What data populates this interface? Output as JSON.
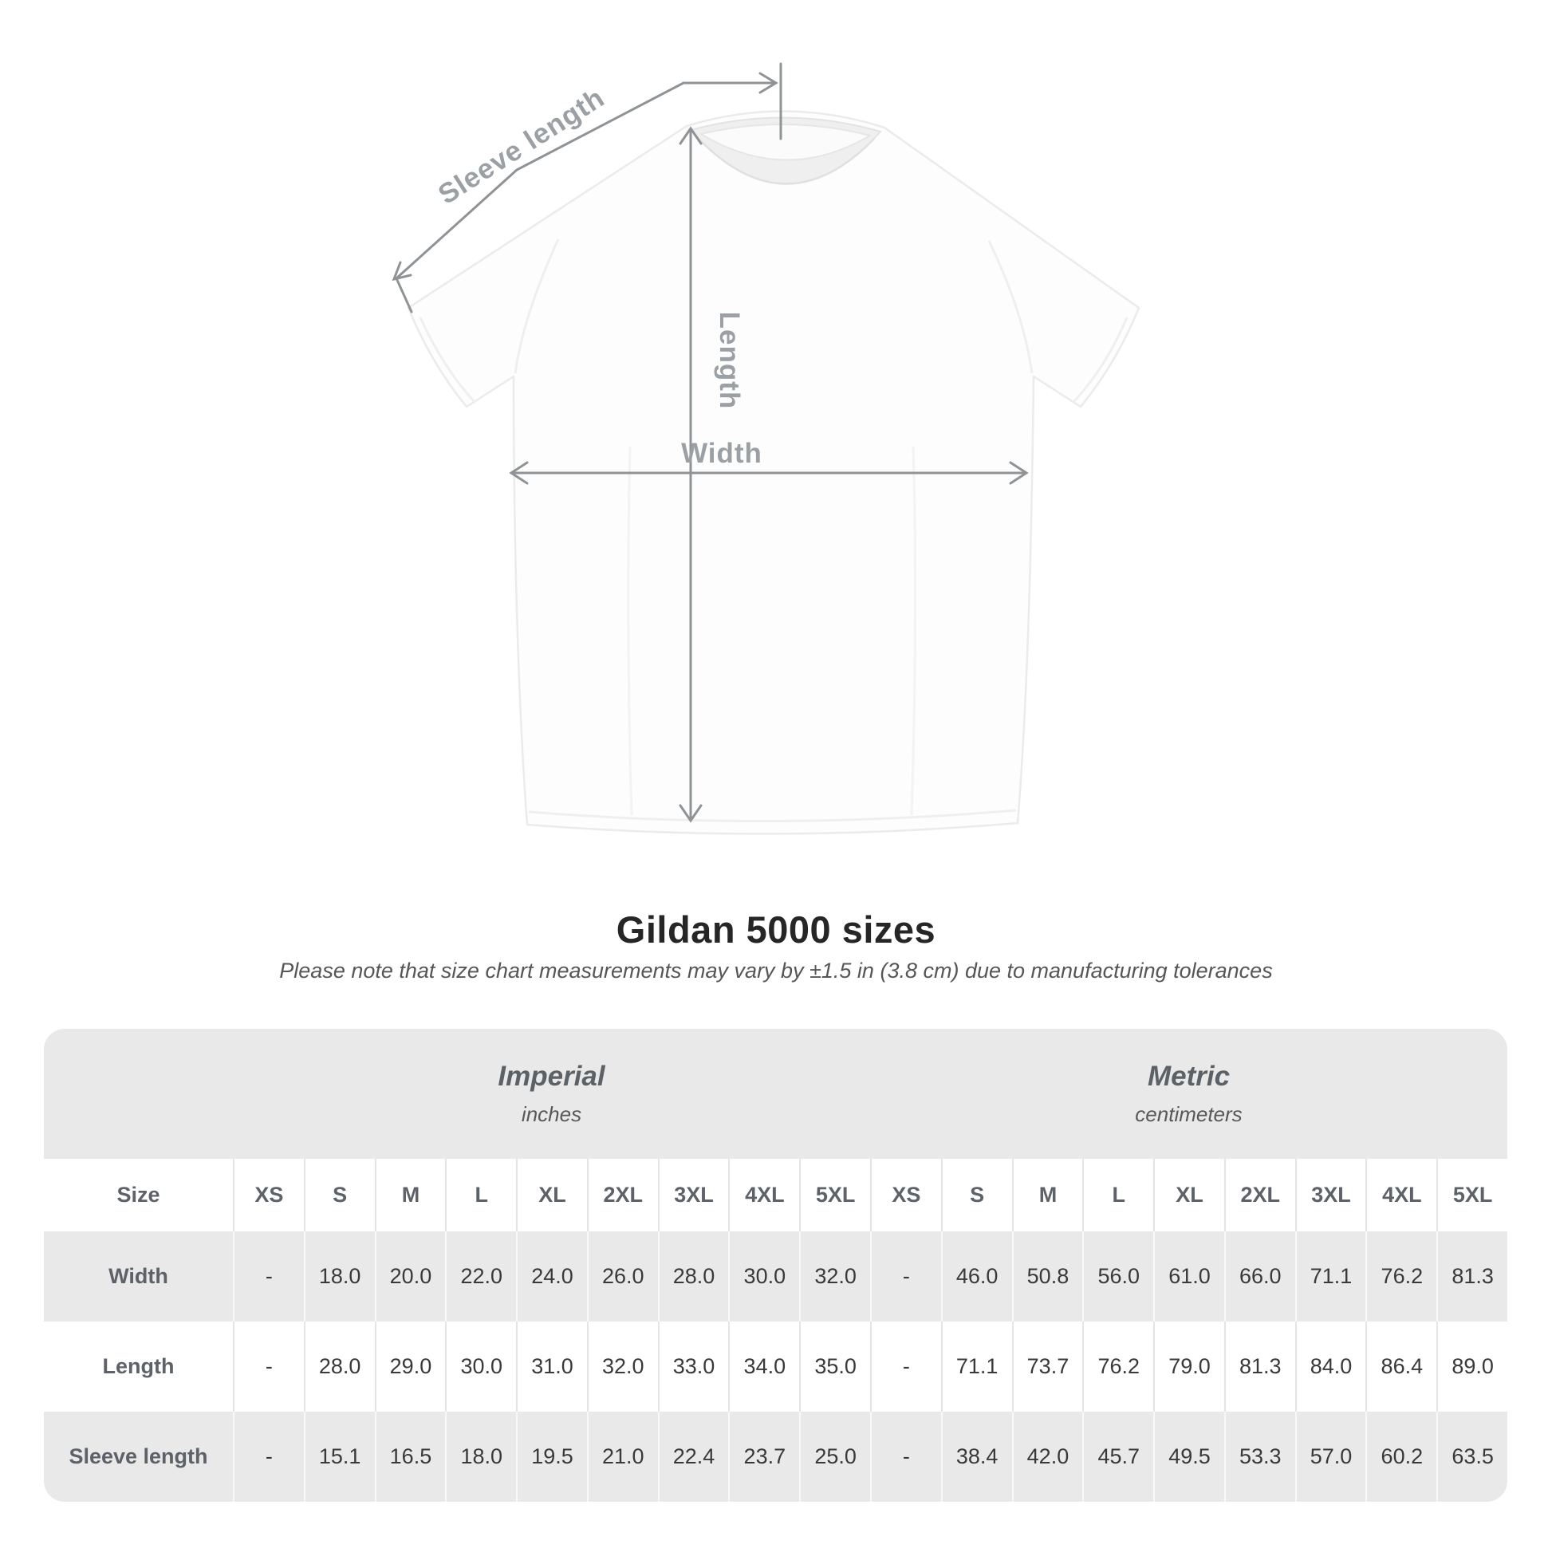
{
  "diagram": {
    "sleeve_length_label": "Sleeve length",
    "length_label": "Length",
    "width_label": "Width"
  },
  "title": "Gildan 5000 sizes",
  "subtitle": "Please note that size chart measurements may vary by ±1.5 in (3.8 cm) due to manufacturing tolerances",
  "table": {
    "sections": [
      {
        "label": "Imperial",
        "sublabel": "inches"
      },
      {
        "label": "Metric",
        "sublabel": "centimeters"
      }
    ],
    "size_column_header": "Size",
    "size_headers_imperial": [
      "XS",
      "S",
      "M",
      "L",
      "XL",
      "2XL",
      "3XL",
      "4XL",
      "5XL"
    ],
    "size_headers_metric": [
      "XS",
      "S",
      "M",
      "L",
      "XL",
      "2XL",
      "3XL",
      "4XL",
      "5XL"
    ],
    "rows": [
      {
        "label": "Width",
        "imperial": [
          "-",
          "18.0",
          "20.0",
          "22.0",
          "24.0",
          "26.0",
          "28.0",
          "30.0",
          "32.0"
        ],
        "metric": [
          "-",
          "46.0",
          "50.8",
          "56.0",
          "61.0",
          "66.0",
          "71.1",
          "76.2",
          "81.3"
        ]
      },
      {
        "label": "Length",
        "imperial": [
          "-",
          "28.0",
          "29.0",
          "30.0",
          "31.0",
          "32.0",
          "33.0",
          "34.0",
          "35.0"
        ],
        "metric": [
          "-",
          "71.1",
          "73.7",
          "76.2",
          "79.0",
          "81.3",
          "84.0",
          "86.4",
          "89.0"
        ]
      },
      {
        "label": "Sleeve length",
        "imperial": [
          "-",
          "15.1",
          "16.5",
          "18.0",
          "19.5",
          "21.0",
          "22.4",
          "23.7",
          "25.0"
        ],
        "metric": [
          "-",
          "38.4",
          "42.0",
          "45.7",
          "49.5",
          "53.3",
          "57.0",
          "60.2",
          "63.5"
        ]
      }
    ]
  },
  "colors": {
    "row_gray": "#e9e9e9",
    "separator_on_white": "#e4e4e4",
    "separator_on_gray": "#f8f8f8",
    "dimension_gray": "#8f9396",
    "diagram_label_gray": "#9aa0a3",
    "title_color": "#262626",
    "table_header_text": "#5c6267",
    "table_value_text": "#37393b"
  }
}
